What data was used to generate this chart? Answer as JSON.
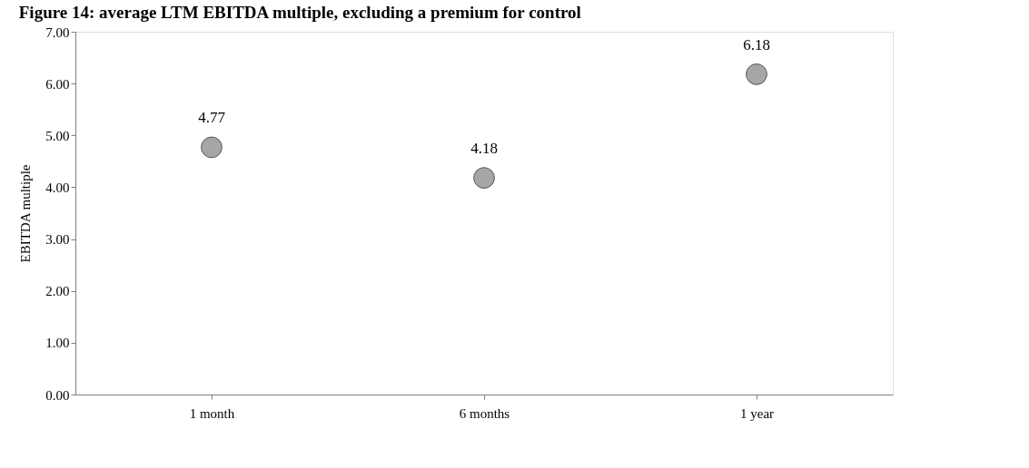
{
  "chart_data": {
    "type": "scatter",
    "title": "Figure 14: average LTM EBITDA multiple, excluding a premium for control",
    "ylabel": "EBITDA multiple",
    "categories": [
      "1 month",
      "6 months",
      "1 year"
    ],
    "series": [
      {
        "color": "#a6a6a6",
        "values": [
          4.77,
          4.18,
          6.18
        ]
      }
    ],
    "ylim": [
      0,
      7
    ],
    "yticks": [
      {
        "value": 0,
        "label": "0.00"
      },
      {
        "value": 1,
        "label": "1.00"
      },
      {
        "value": 2,
        "label": "2.00"
      },
      {
        "value": 3,
        "label": "3.00"
      },
      {
        "value": 4,
        "label": "4.00"
      },
      {
        "value": 5,
        "label": "5.00"
      },
      {
        "value": 6,
        "label": "6.00"
      },
      {
        "value": 7,
        "label": "7.00"
      }
    ],
    "data_labels": true,
    "grid": false,
    "marker": "circle"
  }
}
